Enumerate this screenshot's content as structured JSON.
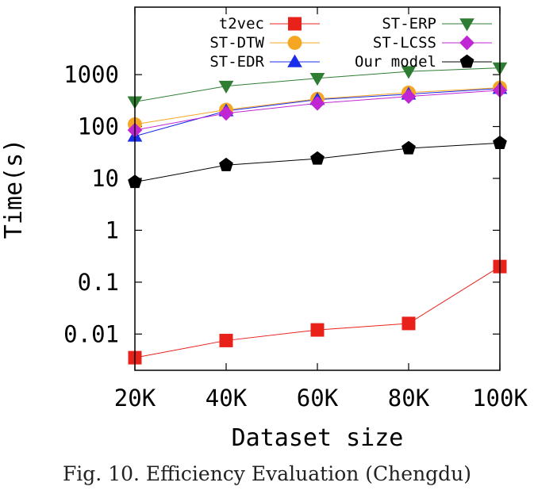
{
  "caption": "Fig. 10.  Efficiency Evaluation (Chengdu)",
  "chart_data": {
    "type": "line",
    "xlabel": "Dataset size",
    "ylabel": "Time(s)",
    "y_scale": "log",
    "ylim": [
      0.002,
      20000
    ],
    "categories": [
      "20K",
      "40K",
      "60K",
      "80K",
      "100K"
    ],
    "y_ticks": [
      {
        "value": 0.01,
        "label": "0.01"
      },
      {
        "value": 0.1,
        "label": "0.1"
      },
      {
        "value": 1,
        "label": "1"
      },
      {
        "value": 10,
        "label": "10"
      },
      {
        "value": 100,
        "label": "100"
      },
      {
        "value": 1000,
        "label": "1000"
      }
    ],
    "legend_position": "top",
    "series": [
      {
        "name": "t2vec",
        "color": "#e8211b",
        "marker": "square",
        "values": [
          0.0035,
          0.0075,
          0.012,
          0.016,
          0.2
        ]
      },
      {
        "name": "ST-DTW",
        "color": "#f5a623",
        "marker": "circle",
        "values": [
          110,
          210,
          340,
          450,
          560
        ]
      },
      {
        "name": "ST-EDR",
        "color": "#1a2de8",
        "marker": "triangle-up",
        "values": [
          65,
          200,
          330,
          420,
          540
        ]
      },
      {
        "name": "ST-ERP",
        "color": "#2e7d32",
        "marker": "triangle-down",
        "values": [
          300,
          600,
          850,
          1150,
          1350
        ]
      },
      {
        "name": "ST-LCSS",
        "color": "#c026d3",
        "marker": "diamond",
        "values": [
          85,
          180,
          280,
          380,
          500
        ]
      },
      {
        "name": "Our model",
        "color": "#000000",
        "marker": "pentagon",
        "values": [
          8.5,
          18,
          24,
          38,
          48
        ]
      }
    ]
  }
}
